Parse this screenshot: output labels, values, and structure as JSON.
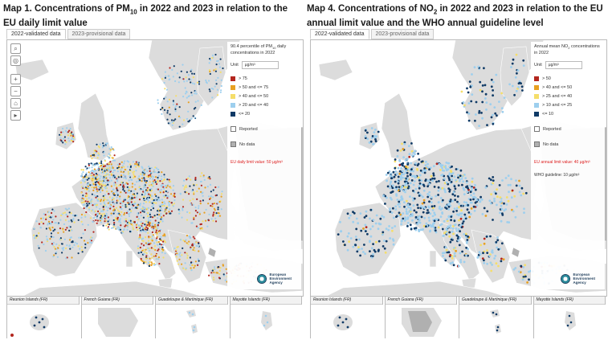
{
  "panels": [
    {
      "title_pre": "Map 1. Concentrations of PM",
      "title_sub": "10",
      "title_post": " in 2022 and 2023 in relation to the EU daily limit value",
      "tabs": [
        "2022-validated data",
        "2023-provisional data"
      ],
      "legend": {
        "title_pre": "90.4 percentile of PM",
        "title_sub": "10",
        "title_post": " daily concentrations in 2022",
        "unit_label": "Unit",
        "unit_value": "µg/m³",
        "classes": [
          {
            "label": "> 75",
            "color": "#b3261e"
          },
          {
            "label": "> 50 and <= 75",
            "color": "#e8a020"
          },
          {
            "label": "> 40 and <= 50",
            "color": "#f5de6a"
          },
          {
            "label": "> 20 and <= 40",
            "color": "#9dcfee"
          },
          {
            "label": "<= 20",
            "color": "#0f3a66"
          }
        ],
        "reported": "Reported",
        "nodata": "No data",
        "limit": "EU daily limit value: 50 µg/m³",
        "who": ""
      },
      "seed": 7,
      "weights": [
        0.1,
        0.12,
        0.18,
        0.42,
        0.18
      ],
      "insets": [
        "Reunion Islands (FR)",
        "French Guiana (FR)",
        "Guadeloupe & Martinique (FR)",
        "Mayotte Islands (FR)"
      ]
    },
    {
      "title_pre": "Map 4. Concentrations of NO",
      "title_sub": "2",
      "title_post": " in 2022 and 2023 in relation to the EU annual limit value and the WHO annual guideline level",
      "tabs": [
        "2022-validated data",
        "2023-provisional data"
      ],
      "legend": {
        "title_pre": "Annual mean NO",
        "title_sub": "2",
        "title_post": " concentrations in 2022",
        "unit_label": "Unit",
        "unit_value": "µg/m³",
        "classes": [
          {
            "label": "> 50",
            "color": "#b3261e"
          },
          {
            "label": "> 40 and <= 50",
            "color": "#e8a020"
          },
          {
            "label": "> 25 and <= 40",
            "color": "#f5de6a"
          },
          {
            "label": "> 10 and <= 25",
            "color": "#9dcfee"
          },
          {
            "label": "<= 10",
            "color": "#0f3a66"
          }
        ],
        "reported": "Reported",
        "nodata": "No data",
        "limit": "EU annual limit value: 40 µg/m³",
        "who": "WHO guideline: 10 µg/m³"
      },
      "seed": 19,
      "weights": [
        0.01,
        0.02,
        0.07,
        0.55,
        0.35
      ],
      "insets": [
        "Reunion Islands (FR)",
        "French Guiana (FR)",
        "Guadeloupe & Martinique (FR)",
        "Mayotte Islands (FR)"
      ]
    }
  ],
  "eea_logo_text": [
    "European",
    "Environment",
    "Agency"
  ],
  "colors": {
    "land": "#dcdcdc",
    "sea": "#ffffff",
    "nodata": "#b0b0b0",
    "border": "#ffffff"
  }
}
